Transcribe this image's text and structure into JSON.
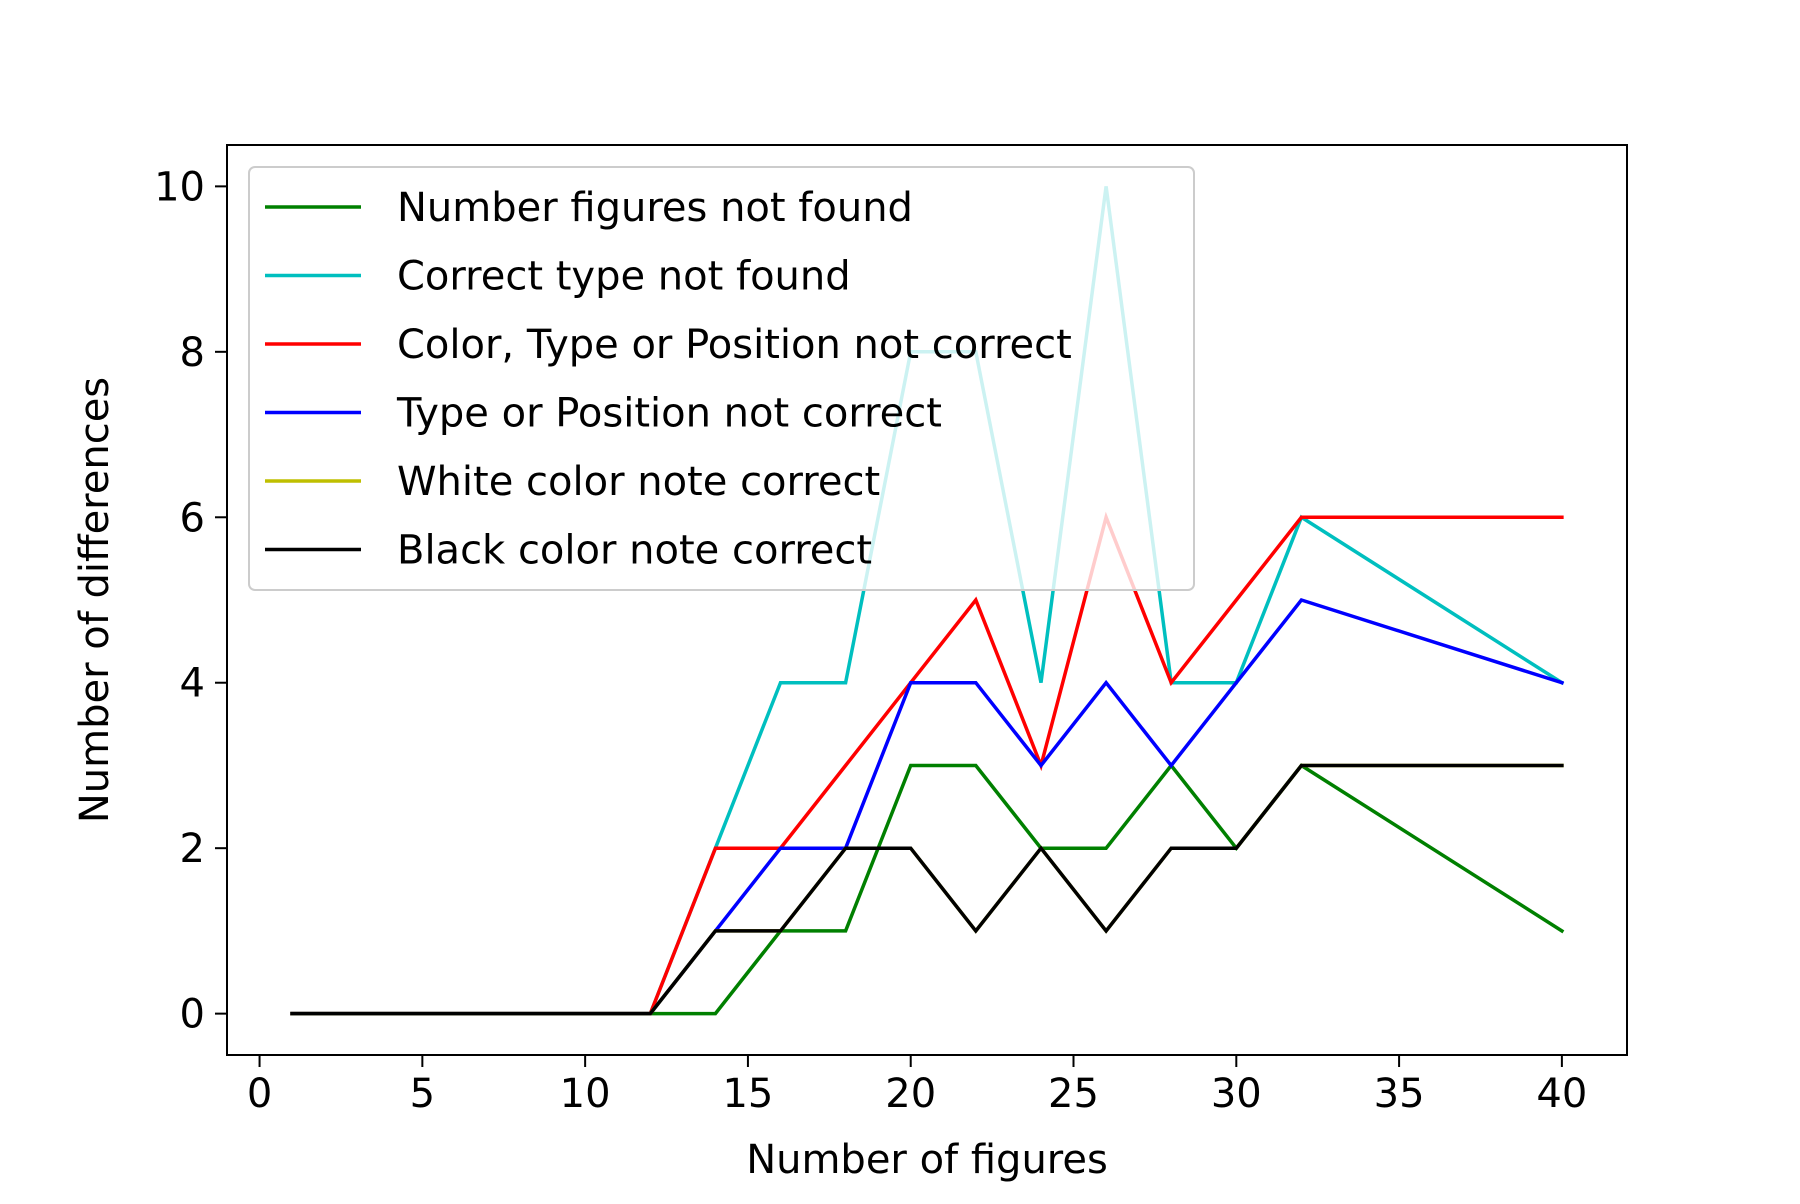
{
  "chart_data": {
    "type": "line",
    "title": "",
    "xlabel": "Number of figures",
    "ylabel": "Number of differences",
    "xlim": [
      -1,
      42
    ],
    "ylim": [
      -0.5,
      10.5
    ],
    "xticks": [
      0,
      5,
      10,
      15,
      20,
      25,
      30,
      35,
      40
    ],
    "xtick_labels": [
      "0",
      "5",
      "10",
      "15",
      "20",
      "25",
      "30",
      "35",
      "40"
    ],
    "yticks": [
      0,
      2,
      4,
      6,
      8,
      10
    ],
    "ytick_labels": [
      "0",
      "2",
      "4",
      "6",
      "8",
      "10"
    ],
    "grid": false,
    "legend_position": "top-left",
    "x": [
      1,
      12,
      14,
      16,
      18,
      20,
      22,
      24,
      26,
      28,
      30,
      32,
      40
    ],
    "series": [
      {
        "name": "Number figures not found",
        "color": "#008000",
        "values": [
          0,
          0,
          0,
          1,
          1,
          3,
          3,
          2,
          2,
          3,
          2,
          3,
          1
        ]
      },
      {
        "name": "Correct type not found",
        "color": "#00bfbf",
        "values": [
          0,
          0,
          2,
          4,
          4,
          8,
          8,
          4,
          10,
          4,
          4,
          6,
          4
        ]
      },
      {
        "name": "Color, Type or Position not correct",
        "color": "#ff0000",
        "values": [
          0,
          0,
          2,
          2,
          3,
          4,
          5,
          3,
          6,
          4,
          5,
          6,
          6
        ]
      },
      {
        "name": "Type or Position not correct",
        "color": "#0000ff",
        "values": [
          0,
          0,
          1,
          2,
          2,
          4,
          4,
          3,
          4,
          3,
          4,
          5,
          4
        ]
      },
      {
        "name": "White color note correct",
        "color": "#bfbf00",
        "values": [
          0,
          0,
          1,
          1,
          2,
          2,
          1,
          2,
          1,
          2,
          2,
          3,
          3
        ]
      },
      {
        "name": "Black color note correct",
        "color": "#000000",
        "values": [
          0,
          0,
          1,
          1,
          2,
          2,
          1,
          2,
          1,
          2,
          2,
          3,
          3
        ]
      }
    ]
  }
}
